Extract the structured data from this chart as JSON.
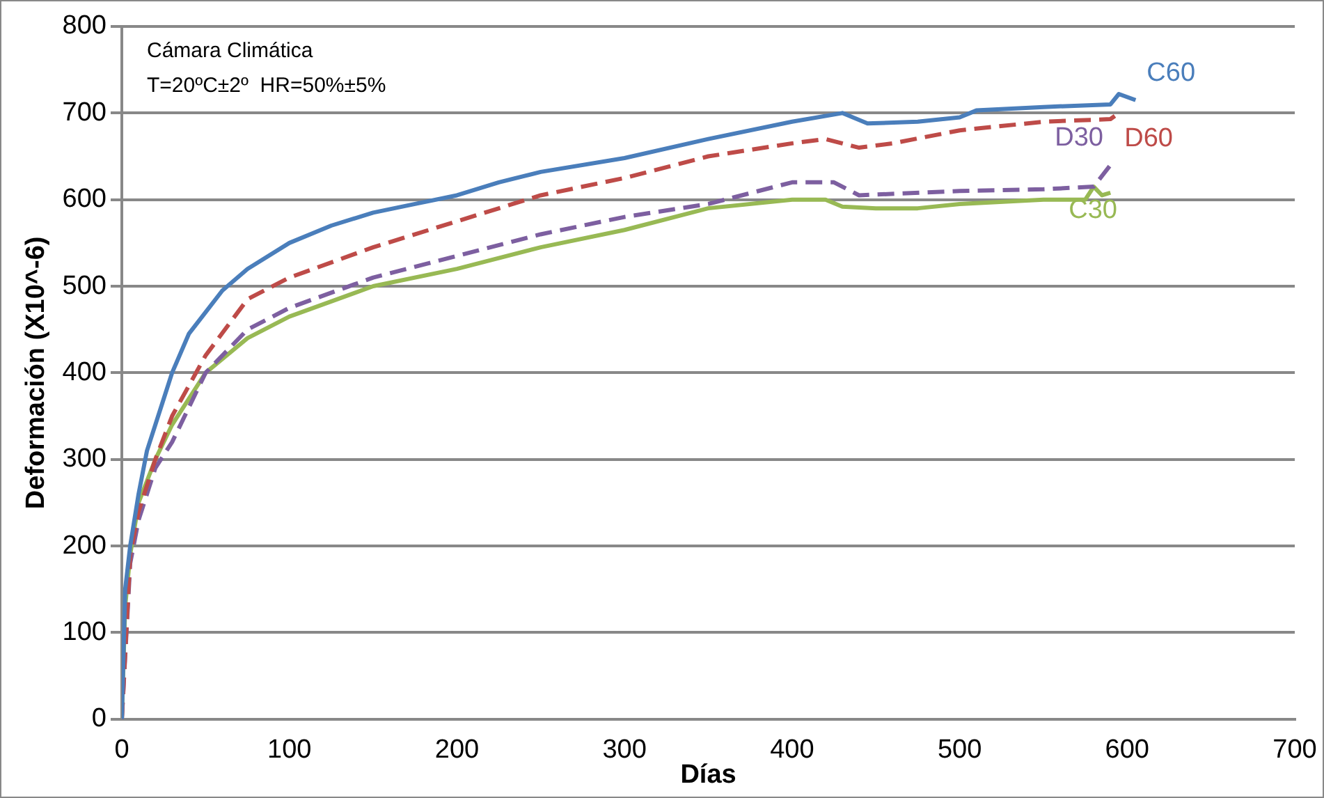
{
  "chart_data": {
    "type": "line",
    "xlabel": "Días",
    "ylabel": "Deformación (X10^-6)",
    "annotations": [
      "Cámara Climática",
      "T=20ºC±2º  HR=50%±5%"
    ],
    "xlim": [
      0,
      700
    ],
    "xticks": [
      0,
      100,
      200,
      300,
      400,
      500,
      600,
      700
    ],
    "ylim": [
      0,
      800
    ],
    "yticks": [
      0,
      100,
      200,
      300,
      400,
      500,
      600,
      700,
      800
    ],
    "grid": "y",
    "legend": false,
    "marker": "none",
    "series": [
      {
        "name": "C60",
        "color": "#4a7ebb",
        "line_style": "solid",
        "x": [
          0,
          2,
          5,
          10,
          15,
          25,
          30,
          40,
          50,
          60,
          75,
          100,
          125,
          150,
          175,
          200,
          225,
          250,
          300,
          350,
          400,
          430,
          445,
          475,
          500,
          510,
          550,
          590,
          595,
          605
        ],
        "values": [
          0,
          150,
          200,
          260,
          310,
          370,
          400,
          445,
          470,
          495,
          520,
          550,
          570,
          585,
          595,
          605,
          620,
          632,
          648,
          670,
          690,
          700,
          688,
          690,
          695,
          703,
          707,
          710,
          722,
          715
        ]
      },
      {
        "name": "D60",
        "color": "#be4b48",
        "line_style": "dashed",
        "x": [
          0,
          5,
          10,
          20,
          30,
          50,
          75,
          100,
          150,
          200,
          250,
          300,
          350,
          400,
          420,
          440,
          460,
          500,
          550,
          590,
          595
        ],
        "values": [
          0,
          190,
          240,
          300,
          350,
          420,
          485,
          510,
          545,
          575,
          605,
          625,
          650,
          665,
          670,
          660,
          665,
          680,
          690,
          693,
          700
        ]
      },
      {
        "name": "D30",
        "color": "#7d5fa0",
        "line_style": "dashed",
        "x": [
          0,
          5,
          10,
          20,
          30,
          50,
          75,
          100,
          150,
          200,
          250,
          300,
          350,
          400,
          425,
          440,
          500,
          550,
          580,
          590
        ],
        "values": [
          0,
          180,
          230,
          290,
          320,
          400,
          450,
          475,
          510,
          535,
          560,
          580,
          595,
          620,
          620,
          605,
          610,
          612,
          615,
          640
        ]
      },
      {
        "name": "C30",
        "color": "#98b954",
        "line_style": "solid",
        "x": [
          0,
          2,
          5,
          10,
          20,
          30,
          50,
          75,
          100,
          150,
          200,
          250,
          300,
          350,
          400,
          420,
          430,
          450,
          475,
          500,
          550,
          575,
          580,
          585,
          590
        ],
        "values": [
          0,
          130,
          190,
          250,
          300,
          340,
          400,
          440,
          465,
          500,
          520,
          545,
          565,
          590,
          600,
          600,
          592,
          590,
          590,
          595,
          600,
          600,
          615,
          605,
          608
        ]
      }
    ]
  }
}
